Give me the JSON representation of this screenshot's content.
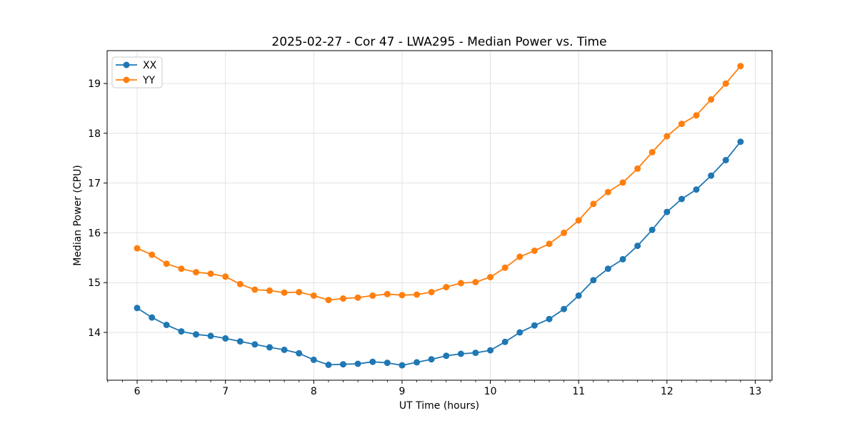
{
  "chart_data": {
    "type": "line",
    "title": "2025-02-27 - Cor 47 - LWA295 - Median Power vs. Time",
    "xlabel": "UT Time (hours)",
    "ylabel": "Median Power (CPU)",
    "xlim": [
      5.66,
      13.19
    ],
    "ylim": [
      13.04,
      19.66
    ],
    "xticks": [
      6,
      7,
      8,
      9,
      10,
      11,
      12,
      13
    ],
    "yticks": [
      14,
      15,
      16,
      17,
      18,
      19
    ],
    "x_minor_step": 0.16667,
    "grid": true,
    "legend_position": "upper left",
    "x": [
      6.0,
      6.167,
      6.333,
      6.5,
      6.667,
      6.833,
      7.0,
      7.167,
      7.333,
      7.5,
      7.667,
      7.833,
      8.0,
      8.167,
      8.333,
      8.5,
      8.667,
      8.833,
      9.0,
      9.167,
      9.333,
      9.5,
      9.667,
      9.833,
      10.0,
      10.167,
      10.333,
      10.5,
      10.667,
      10.833,
      11.0,
      11.167,
      11.333,
      11.5,
      11.667,
      11.833,
      12.0,
      12.167,
      12.333,
      12.5,
      12.667,
      12.833
    ],
    "series": [
      {
        "name": "XX",
        "color": "#1f77b4",
        "values": [
          14.49,
          14.3,
          14.15,
          14.02,
          13.96,
          13.93,
          13.88,
          13.82,
          13.76,
          13.7,
          13.65,
          13.58,
          13.45,
          13.35,
          13.36,
          13.37,
          13.41,
          13.39,
          13.34,
          13.4,
          13.46,
          13.53,
          13.57,
          13.59,
          13.64,
          13.81,
          14.0,
          14.14,
          14.27,
          14.47,
          14.74,
          15.05,
          15.28,
          15.47,
          15.74,
          16.06,
          16.42,
          16.68,
          16.87,
          17.15,
          17.46,
          17.83
        ]
      },
      {
        "name": "YY",
        "color": "#ff7f0e",
        "values": [
          15.69,
          15.56,
          15.38,
          15.28,
          15.21,
          15.18,
          15.12,
          14.97,
          14.86,
          14.84,
          14.8,
          14.81,
          14.74,
          14.65,
          14.68,
          14.7,
          14.74,
          14.77,
          14.75,
          14.76,
          14.81,
          14.91,
          14.99,
          15.01,
          15.11,
          15.3,
          15.52,
          15.64,
          15.78,
          16.0,
          16.25,
          16.58,
          16.82,
          17.01,
          17.29,
          17.62,
          17.94,
          18.19,
          18.36,
          18.68,
          19.0,
          19.35
        ]
      }
    ],
    "style": {
      "grid_color": "#e2e2e2",
      "spine_color": "#000000",
      "legend_border_color": "#cccccc",
      "background_color": "#ffffff"
    }
  }
}
